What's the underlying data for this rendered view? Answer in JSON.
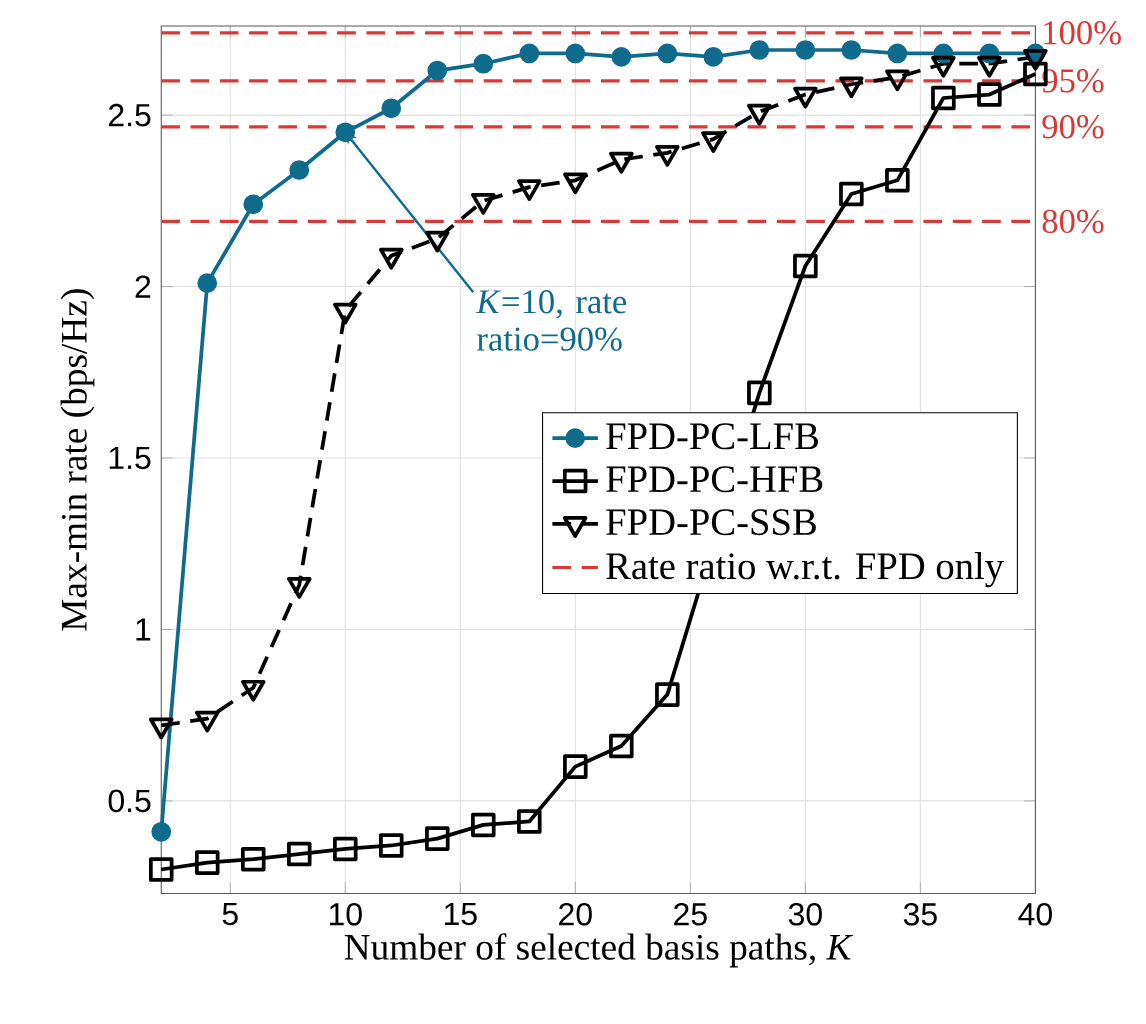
{
  "chart_data": {
    "type": "line",
    "xlabel": "Number of selected basis paths, *K*",
    "ylabel": "Max-min rate (bps/Hz)",
    "x": [
      2,
      4,
      6,
      8,
      10,
      12,
      14,
      16,
      18,
      20,
      22,
      24,
      26,
      28,
      30,
      32,
      34,
      36,
      38,
      40
    ],
    "xlim": [
      2,
      40
    ],
    "xticks": [
      5,
      10,
      15,
      20,
      25,
      30,
      35,
      40
    ],
    "ylim": [
      0.23,
      2.76
    ],
    "yticks": [
      0.5,
      1,
      1.5,
      2,
      2.5
    ],
    "grid": true,
    "legend": "right",
    "series": [
      {
        "name": "FPD-PC-LFB",
        "color": "#0f6b8c",
        "marker": "circle",
        "line_style": "solid",
        "values": [
          0.41,
          2.01,
          2.24,
          2.34,
          2.45,
          2.52,
          2.63,
          2.65,
          2.68,
          2.68,
          2.67,
          2.68,
          2.67,
          2.69,
          2.69,
          2.69,
          2.68,
          2.68,
          2.68,
          2.68
        ]
      },
      {
        "name": "FPD-PC-HFB",
        "color": "#000000",
        "marker": "square",
        "line_style": "solid",
        "values": [
          0.3,
          0.32,
          0.33,
          0.345,
          0.36,
          0.37,
          0.39,
          0.43,
          0.44,
          0.6,
          0.66,
          0.81,
          null,
          1.69,
          2.06,
          2.27,
          2.31,
          2.55,
          2.56,
          2.62
        ]
      },
      {
        "name": "FPD-PC-SSB",
        "color": "#000000",
        "marker": "triangle",
        "line_style": "dashed",
        "values": [
          0.72,
          0.74,
          0.83,
          1.13,
          1.93,
          2.09,
          2.14,
          2.25,
          2.29,
          2.31,
          2.37,
          2.39,
          2.43,
          2.51,
          2.56,
          2.59,
          2.61,
          2.65,
          2.65,
          2.67
        ]
      }
    ],
    "ref_lines": [
      {
        "axis": "y",
        "value": 2.74,
        "color": "#d93838",
        "line_style": "dashed"
      },
      {
        "axis": "y",
        "value": 2.6,
        "color": "#d93838",
        "line_style": "dashed"
      },
      {
        "axis": "y",
        "value": 2.466,
        "color": "#d93838",
        "line_style": "dashed"
      },
      {
        "axis": "y",
        "value": 2.19,
        "color": "#d93838",
        "line_style": "dashed"
      }
    ],
    "annotations": [
      "100%",
      "95%",
      "90%",
      "80%",
      {
        "text": "*K*=10, rate ratio=90%",
        "x": 10,
        "y": 2.45
      },
      "Rate ratio w.r.t. FPD only"
    ]
  }
}
